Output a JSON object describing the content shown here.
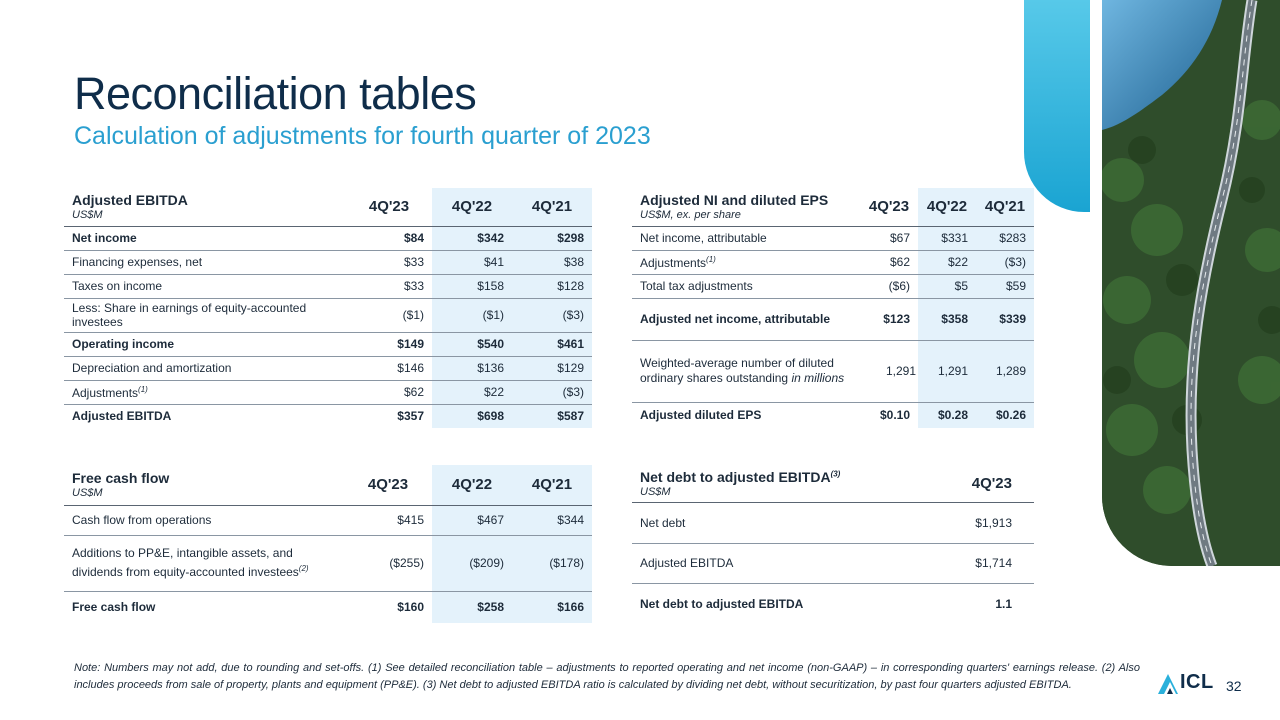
{
  "slide": {
    "title": "Reconciliation tables",
    "subtitle": "Calculation of adjustments for fourth quarter of 2023",
    "page_number": "32",
    "logo_text": "ICL",
    "note": "Note: Numbers may not add, due to rounding and set-offs. (1) See detailed reconciliation table – adjustments to reported operating and net income (non-GAAP) – in corresponding quarters' earnings release. (2) Also includes proceeds from sale of property, plants and equipment (PP&E). (3) Net debt to adjusted EBITDA ratio is calculated by dividing net debt, without securitization, by past four quarters adjusted EBITDA.",
    "colors": {
      "title": "#0f2d4a",
      "subtitle": "#2a9fd0",
      "highlight": "#e4f2fb",
      "accent_tab": "#2ab0db"
    }
  },
  "ebitda": {
    "title": "Adjusted EBITDA",
    "unit": "US$M",
    "columns": [
      "4Q'23",
      "4Q'22",
      "4Q'21"
    ],
    "rows": [
      {
        "label": "Net income",
        "sup": "",
        "values": [
          "$84",
          "$342",
          "$298"
        ]
      },
      {
        "label": "Financing expenses, net",
        "sup": "",
        "values": [
          "$33",
          "$41",
          "$38"
        ]
      },
      {
        "label": "Taxes on income",
        "sup": "",
        "values": [
          "$33",
          "$158",
          "$128"
        ]
      },
      {
        "label": "Less: Share in earnings of equity-accounted investees",
        "sup": "",
        "values": [
          "($1)",
          "($1)",
          "($3)"
        ]
      },
      {
        "label": "Operating income",
        "sup": "",
        "values": [
          "$149",
          "$540",
          "$461"
        ]
      },
      {
        "label": "Depreciation and amortization",
        "sup": "",
        "values": [
          "$146",
          "$136",
          "$129"
        ]
      },
      {
        "label": "Adjustments",
        "sup": "(1)",
        "values": [
          "$62",
          "$22",
          "($3)"
        ]
      },
      {
        "label": "Adjusted EBITDA",
        "sup": "",
        "values": [
          "$357",
          "$698",
          "$587"
        ]
      }
    ]
  },
  "ni_eps": {
    "title": "Adjusted NI and diluted EPS",
    "unit": "US$M, ex. per share",
    "columns": [
      "4Q'23",
      "4Q'22",
      "4Q'21"
    ],
    "rows": [
      {
        "label": "Net income, attributable",
        "sup": "",
        "values": [
          "$67",
          "$331",
          "$283"
        ]
      },
      {
        "label": "Adjustments",
        "sup": "(1)",
        "values": [
          "$62",
          "$22",
          "($3)"
        ]
      },
      {
        "label": "Total tax adjustments",
        "sup": "",
        "values": [
          "($6)",
          "$5",
          "$59"
        ]
      },
      {
        "label": "Adjusted net income, attributable",
        "sup": "",
        "values": [
          "$123",
          "$358",
          "$339"
        ]
      },
      {
        "label": "Weighted-average number of diluted ordinary shares outstanding",
        "label_italic": "in millions",
        "sup": "",
        "values": [
          "1,291",
          "1,291",
          "1,289"
        ]
      },
      {
        "label": "Adjusted diluted EPS",
        "sup": "",
        "values": [
          "$0.10",
          "$0.28",
          "$0.26"
        ]
      }
    ]
  },
  "fcf": {
    "title": "Free cash flow",
    "unit": "US$M",
    "columns": [
      "4Q'23",
      "4Q'22",
      "4Q'21"
    ],
    "rows": [
      {
        "label": "Cash flow from operations",
        "sup": "",
        "values": [
          "$415",
          "$467",
          "$344"
        ]
      },
      {
        "label": "Additions to PP&E, intangible assets, and dividends from equity-accounted investees",
        "sup": "(2)",
        "values": [
          "($255)",
          "($209)",
          "($178)"
        ]
      },
      {
        "label": "Free cash flow",
        "sup": "",
        "values": [
          "$160",
          "$258",
          "$166"
        ]
      }
    ]
  },
  "net_debt": {
    "title": "Net debt to adjusted EBITDA",
    "title_sup": "(3)",
    "unit": "US$M",
    "columns": [
      "4Q'23"
    ],
    "rows": [
      {
        "label": "Net debt",
        "sup": "",
        "values": [
          "$1,913"
        ]
      },
      {
        "label": "Adjusted EBITDA",
        "sup": "",
        "values": [
          "$1,714"
        ]
      },
      {
        "label": "Net debt to adjusted EBITDA",
        "sup": "",
        "values": [
          "1.1"
        ]
      }
    ]
  }
}
